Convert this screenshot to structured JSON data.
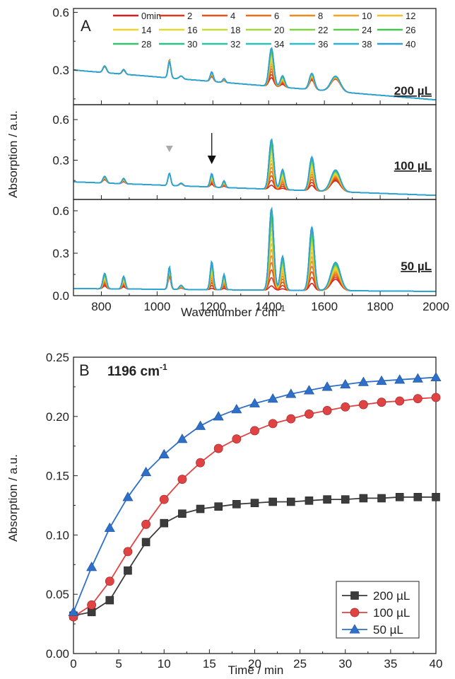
{
  "chart_data": [
    {
      "type": "line",
      "panel": "A",
      "xlabel": "Wavenumber / cm",
      "xlabel_sup": "-1",
      "ylabel": "Absorption / a.u.",
      "xlim": [
        700,
        2000
      ],
      "xticks": [
        "800",
        "1000",
        "1200",
        "1400",
        "1600",
        "1800",
        "2000"
      ],
      "legend_times_min": [
        "0min",
        "2",
        "4",
        "6",
        "8",
        "10",
        "12",
        "14",
        "16",
        "18",
        "20",
        "22",
        "24",
        "26",
        "28",
        "30",
        "32",
        "34",
        "36",
        "38",
        "40"
      ],
      "legend_colors": [
        "#d62020",
        "#dc3a1c",
        "#e3531a",
        "#e96e1a",
        "#ee8a1d",
        "#f3a523",
        "#f5bf2a",
        "#f3d230",
        "#e4d836",
        "#c9d93a",
        "#a6d73f",
        "#7fd244",
        "#5dcb4b",
        "#45c455",
        "#36c16d",
        "#2ec188",
        "#2bc3a2",
        "#2cc2ba",
        "#2ebcce",
        "#30afd8",
        "#2f9fd6"
      ],
      "peaks_cm1": [
        812,
        880,
        1044,
        1086,
        1196,
        1240,
        1410,
        1450,
        1555,
        1640
      ],
      "subplots": [
        {
          "label": "200 µL",
          "ylim": [
            0.12,
            0.62
          ],
          "yticks": [
            "0.3",
            "0.6"
          ],
          "baseline": [
            0.3,
            0.145
          ],
          "peaks_t0": [
            0.03,
            0.02,
            0.095,
            0.015,
            0.025,
            0.01,
            0.045,
            0.015,
            0.05,
            0.065
          ],
          "peaks_t40": [
            0.035,
            0.025,
            0.085,
            0.015,
            0.05,
            0.02,
            0.2,
            0.06,
            0.085,
            0.08
          ]
        },
        {
          "label": "100 µL",
          "ylim": [
            0.01,
            0.71
          ],
          "yticks": [
            "0.3",
            "0.6"
          ],
          "baseline": [
            0.14,
            0.04
          ],
          "peaks_t0": [
            0.025,
            0.015,
            0.09,
            0.015,
            0.02,
            0.01,
            0.03,
            0.01,
            0.04,
            0.08
          ],
          "peaks_t40": [
            0.05,
            0.04,
            0.09,
            0.02,
            0.1,
            0.05,
            0.37,
            0.15,
            0.25,
            0.16
          ]
        },
        {
          "label": "50 µL",
          "ylim": [
            0.0,
            0.68
          ],
          "yticks": [
            "0.0",
            "0.3",
            "0.6"
          ],
          "baseline": [
            0.05,
            0.03
          ],
          "peaks_t0": [
            0.02,
            0.015,
            0.09,
            0.01,
            0.01,
            0.01,
            0.03,
            0.01,
            0.05,
            0.08
          ],
          "peaks_t40": [
            0.11,
            0.09,
            0.16,
            0.03,
            0.2,
            0.11,
            0.58,
            0.24,
            0.45,
            0.2
          ]
        }
      ],
      "markers": [
        {
          "type": "triangle-down",
          "x": 1044,
          "panel": 1,
          "color": "#aaaaaa"
        },
        {
          "type": "arrow-down",
          "x": 1196,
          "panel": 1,
          "color": "#111111"
        }
      ]
    },
    {
      "type": "line",
      "panel": "B",
      "title": "1196 cm",
      "title_sup": "-1",
      "xlabel": "Time / min",
      "ylabel": "Absorption / a.u.",
      "xlim": [
        0,
        40
      ],
      "ylim": [
        0.0,
        0.25
      ],
      "xticks": [
        "0",
        "5",
        "10",
        "15",
        "20",
        "25",
        "30",
        "35",
        "40"
      ],
      "yticks": [
        "0.00",
        "0.05",
        "0.10",
        "0.15",
        "0.20",
        "0.25"
      ],
      "x": [
        0,
        2,
        4,
        6,
        8,
        10,
        12,
        14,
        16,
        18,
        20,
        22,
        24,
        26,
        28,
        30,
        32,
        34,
        36,
        38,
        40
      ],
      "series": [
        {
          "name": "200 µL",
          "marker": "square",
          "color": "#3c3c3c",
          "values": [
            0.032,
            0.035,
            0.045,
            0.07,
            0.094,
            0.11,
            0.118,
            0.122,
            0.124,
            0.126,
            0.127,
            0.128,
            0.128,
            0.129,
            0.13,
            0.13,
            0.131,
            0.131,
            0.132,
            0.132,
            0.132
          ]
        },
        {
          "name": "100 µL",
          "marker": "circle",
          "color": "#e04343",
          "values": [
            0.031,
            0.041,
            0.061,
            0.086,
            0.109,
            0.13,
            0.147,
            0.161,
            0.173,
            0.181,
            0.188,
            0.194,
            0.198,
            0.202,
            0.205,
            0.208,
            0.21,
            0.212,
            0.213,
            0.215,
            0.216
          ]
        },
        {
          "name": "50 µL",
          "marker": "triangle",
          "color": "#2e6fc9",
          "values": [
            0.035,
            0.073,
            0.106,
            0.132,
            0.153,
            0.168,
            0.181,
            0.192,
            0.2,
            0.206,
            0.211,
            0.215,
            0.219,
            0.222,
            0.225,
            0.227,
            0.229,
            0.23,
            0.231,
            0.232,
            0.233
          ]
        }
      ],
      "legend_position": "bottom-right"
    }
  ]
}
